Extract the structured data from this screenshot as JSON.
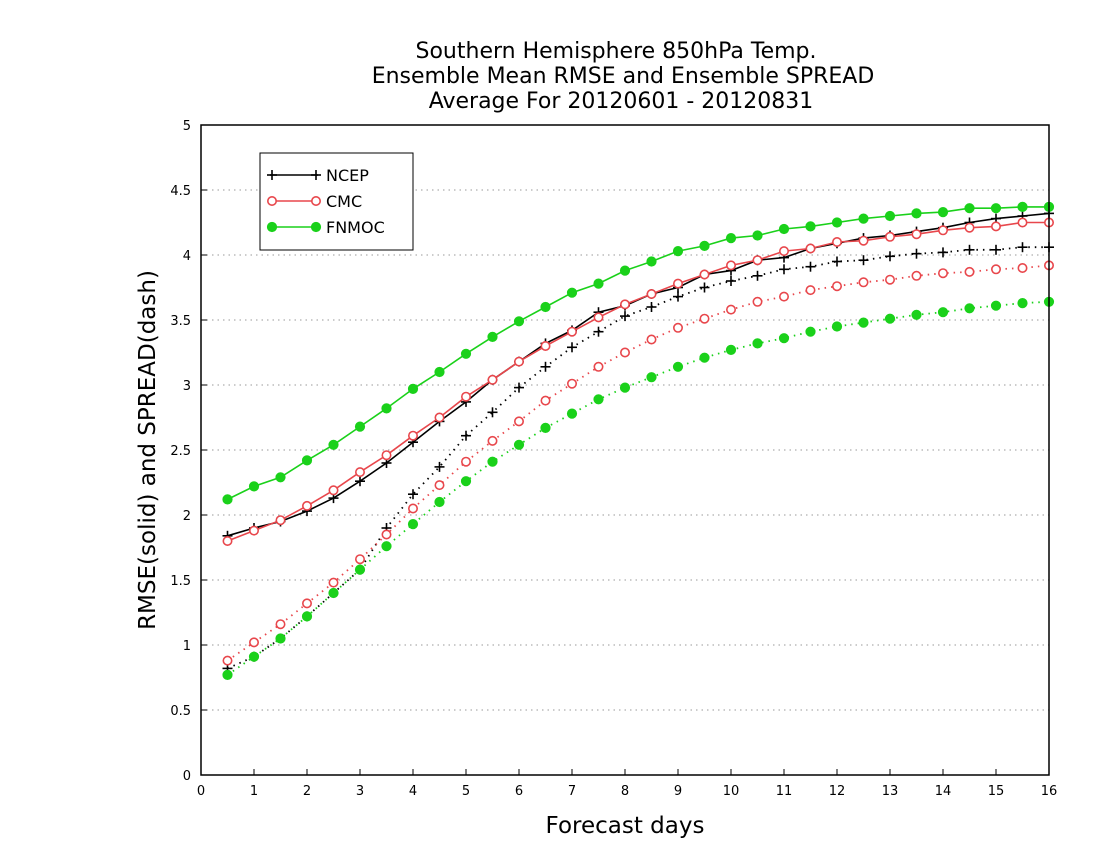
{
  "chart_data": {
    "type": "line",
    "title_lines": [
      "Southern Hemisphere 850hPa Temp.",
      "Ensemble Mean RMSE and Ensemble SPREAD",
      "Average For 20120601 - 20120831"
    ],
    "xlabel": "Forecast days",
    "ylabel": "RMSE(solid) and SPREAD(dash)",
    "xlim": [
      0,
      16
    ],
    "ylim": [
      0,
      5
    ],
    "xticks": [
      0,
      1,
      2,
      3,
      4,
      5,
      6,
      7,
      8,
      9,
      10,
      11,
      12,
      13,
      14,
      15,
      16
    ],
    "yticks": [
      0,
      0.5,
      1,
      1.5,
      2,
      2.5,
      3,
      3.5,
      4,
      4.5,
      5
    ],
    "grid": "horizontal dotted",
    "legend_position": "top-left",
    "x": [
      0.5,
      1,
      1.5,
      2,
      2.5,
      3,
      3.5,
      4,
      4.5,
      5,
      5.5,
      6,
      6.5,
      7,
      7.5,
      8,
      8.5,
      9,
      9.5,
      10,
      10.5,
      11,
      11.5,
      12,
      12.5,
      13,
      13.5,
      14,
      14.5,
      15,
      15.5,
      16
    ],
    "series": [
      {
        "name": "NCEP",
        "color": "#000000",
        "marker": "plus",
        "rmse": [
          1.84,
          1.9,
          1.95,
          2.03,
          2.13,
          2.26,
          2.4,
          2.56,
          2.72,
          2.87,
          3.04,
          3.18,
          3.32,
          3.42,
          3.56,
          3.61,
          3.7,
          3.75,
          3.85,
          3.88,
          3.96,
          3.98,
          4.05,
          4.09,
          4.13,
          4.15,
          4.18,
          4.21,
          4.25,
          4.28,
          4.3,
          4.32
        ],
        "spread": [
          0.82,
          0.91,
          1.05,
          1.22,
          1.4,
          1.58,
          1.9,
          2.16,
          2.37,
          2.61,
          2.79,
          2.98,
          3.14,
          3.29,
          3.41,
          3.53,
          3.6,
          3.68,
          3.75,
          3.8,
          3.84,
          3.89,
          3.91,
          3.95,
          3.96,
          3.99,
          4.01,
          4.02,
          4.04,
          4.04,
          4.06,
          4.06
        ]
      },
      {
        "name": "CMC",
        "color": "#e8474c",
        "marker": "open-circle",
        "rmse": [
          1.8,
          1.88,
          1.96,
          2.07,
          2.19,
          2.33,
          2.46,
          2.61,
          2.75,
          2.91,
          3.04,
          3.18,
          3.3,
          3.41,
          3.52,
          3.62,
          3.7,
          3.78,
          3.85,
          3.92,
          3.96,
          4.03,
          4.05,
          4.1,
          4.11,
          4.14,
          4.16,
          4.19,
          4.21,
          4.22,
          4.25,
          4.25
        ],
        "spread": [
          0.88,
          1.02,
          1.16,
          1.32,
          1.48,
          1.66,
          1.85,
          2.05,
          2.23,
          2.41,
          2.57,
          2.72,
          2.88,
          3.01,
          3.14,
          3.25,
          3.35,
          3.44,
          3.51,
          3.58,
          3.64,
          3.68,
          3.73,
          3.76,
          3.79,
          3.81,
          3.84,
          3.86,
          3.87,
          3.89,
          3.9,
          3.92
        ]
      },
      {
        "name": "FNMOC",
        "color": "#1ad11a",
        "marker": "filled-circle",
        "rmse": [
          2.12,
          2.22,
          2.29,
          2.42,
          2.54,
          2.68,
          2.82,
          2.97,
          3.1,
          3.24,
          3.37,
          3.49,
          3.6,
          3.71,
          3.78,
          3.88,
          3.95,
          4.03,
          4.07,
          4.13,
          4.15,
          4.2,
          4.22,
          4.25,
          4.28,
          4.3,
          4.32,
          4.33,
          4.36,
          4.36,
          4.37,
          4.37
        ],
        "spread": [
          0.77,
          0.91,
          1.05,
          1.22,
          1.4,
          1.58,
          1.76,
          1.93,
          2.1,
          2.26,
          2.41,
          2.54,
          2.67,
          2.78,
          2.89,
          2.98,
          3.06,
          3.14,
          3.21,
          3.27,
          3.32,
          3.36,
          3.41,
          3.45,
          3.48,
          3.51,
          3.54,
          3.56,
          3.59,
          3.61,
          3.63,
          3.64
        ]
      }
    ]
  }
}
